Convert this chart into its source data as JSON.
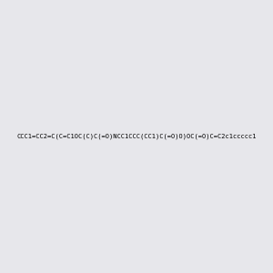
{
  "smiles_full": "CCC1=CC2=C(C=C1OC(C)C(=O)NCC1CCC(CC1)C(=O)O)OC(=O)C=C2c1ccccc1",
  "background_color": [
    0.906,
    0.906,
    0.922,
    1.0
  ],
  "figsize": [
    3.0,
    3.0
  ],
  "dpi": 100,
  "img_size": [
    300,
    300
  ]
}
